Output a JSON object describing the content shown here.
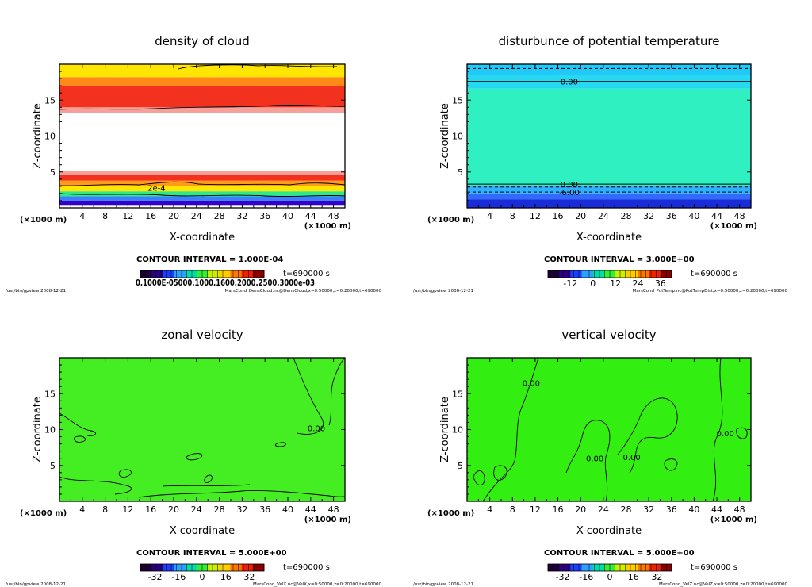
{
  "chart_data": [
    {
      "type": "heatmap",
      "title": "density of cloud",
      "xlabel": "X-coordinate",
      "ylabel": "Z-coordinate",
      "x_unit": "(×1000 m)",
      "y_unit": "(×1000 m)",
      "xlim": [
        0,
        50
      ],
      "ylim": [
        0,
        20
      ],
      "x_ticks": [
        4,
        8,
        12,
        16,
        20,
        24,
        28,
        32,
        36,
        40,
        44,
        48
      ],
      "x_tick_labels": [
        "4",
        "8",
        "12",
        "16",
        "20",
        "24",
        "28",
        "32",
        "36",
        "40",
        "44",
        "48"
      ],
      "y_ticks": [
        5,
        10,
        15
      ],
      "y_tick_labels": [
        "5",
        "10",
        "15"
      ],
      "contour_interval_text": "CONTOUR INTERVAL = 1.000E-04",
      "time_text": "t=690000 s",
      "colorbar_text": "0.1000E-05000.1000.1600.2000.2500.3000e-03",
      "contour_labels": [
        {
          "text": "2e-4",
          "x": 17,
          "z": 2.8
        }
      ],
      "footer_left": "/usr/bin/gpview   2008-12-21",
      "footer_right": "MarsCond_DensCloud.nc@DensCloud,x=0:50000,z=0:20000,t=690000",
      "bands": [
        {
          "z0": 0.3,
          "z1": 1.0,
          "color": "#3300cc"
        },
        {
          "z0": 1.0,
          "z1": 1.6,
          "color": "#3d7dff"
        },
        {
          "z0": 1.6,
          "z1": 2.3,
          "color": "#2ee88a"
        },
        {
          "z0": 2.3,
          "z1": 3.0,
          "color": "#ffe600"
        },
        {
          "z0": 3.0,
          "z1": 3.8,
          "color": "#ff9a1a"
        },
        {
          "z0": 3.8,
          "z1": 4.6,
          "color": "#f2321e"
        },
        {
          "z0": 4.6,
          "z1": 5.2,
          "color": "#f7a09a"
        },
        {
          "z0": 13.2,
          "z1": 14.0,
          "color": "#f7a09a"
        },
        {
          "z0": 14.0,
          "z1": 17.0,
          "color": "#f2321e"
        },
        {
          "z0": 17.0,
          "z1": 18.2,
          "color": "#ff8a1a"
        },
        {
          "z0": 18.2,
          "z1": 20.0,
          "color": "#ffe600"
        }
      ],
      "colorbar": {
        "colors": [
          "#1a0033",
          "#2a0080",
          "#1a40ff",
          "#2aa0ff",
          "#00ddaa",
          "#33ee33",
          "#ccee00",
          "#ffcc00",
          "#ff7700",
          "#ee2200",
          "#880000"
        ]
      }
    },
    {
      "type": "heatmap",
      "title": "disturbunce of potential temperature",
      "xlabel": "X-coordinate",
      "ylabel": "Z-coordinate",
      "x_unit": "(×1000 m)",
      "y_unit": "(×1000 m)",
      "xlim": [
        0,
        50
      ],
      "ylim": [
        0,
        20
      ],
      "x_ticks": [
        4,
        8,
        12,
        16,
        20,
        24,
        28,
        32,
        36,
        40,
        44,
        48
      ],
      "x_tick_labels": [
        "4",
        "8",
        "12",
        "16",
        "20",
        "24",
        "28",
        "32",
        "36",
        "40",
        "44",
        "48"
      ],
      "y_ticks": [
        5,
        10,
        15
      ],
      "y_tick_labels": [
        "5",
        "10",
        "15"
      ],
      "contour_interval_text": "CONTOUR INTERVAL = 3.000E+00",
      "time_text": "t=690000 s",
      "colorbar_labels": [
        "-12",
        "0",
        "12",
        "24",
        "36"
      ],
      "colorbar_label_values": [
        -12,
        0,
        12,
        24,
        36
      ],
      "colorbar_range": [
        -24,
        42
      ],
      "contour_labels": [
        {
          "text": "0.00",
          "x": 18,
          "z": 17.6
        },
        {
          "text": "0.00",
          "x": 18,
          "z": 3.3
        },
        {
          "text": "-6.00",
          "x": 18,
          "z": 2.2
        }
      ],
      "footer_left": "/usr/bin/gpview   2008-12-21",
      "footer_right": "MarsCond_PotTemp.nc@PotTempDist,x=0:50000,z=0:20000,t=690000",
      "bands": [
        {
          "z0": 0,
          "z1": 1.2,
          "color": "#1a2bd9"
        },
        {
          "z0": 1.2,
          "z1": 2.0,
          "color": "#2f6bff"
        },
        {
          "z0": 2.0,
          "z1": 3.0,
          "color": "#2fb0ff"
        },
        {
          "z0": 3.0,
          "z1": 16.6,
          "color": "#2ef0c0"
        },
        {
          "z0": 16.6,
          "z1": 18.5,
          "color": "#26d8f0"
        },
        {
          "z0": 18.5,
          "z1": 20.0,
          "color": "#22c8f8"
        }
      ],
      "colorbar": {
        "colors": [
          "#1a0033",
          "#2a0080",
          "#1a40ff",
          "#2aa0ff",
          "#00ddaa",
          "#33ee33",
          "#ccee00",
          "#ffcc00",
          "#ff7700",
          "#ee2200",
          "#880000"
        ]
      }
    },
    {
      "type": "heatmap",
      "title": "zonal velocity",
      "xlabel": "X-coordinate",
      "ylabel": "Z-coordinate",
      "x_unit": "(×1000 m)",
      "y_unit": "(×1000 m)",
      "xlim": [
        0,
        50
      ],
      "ylim": [
        0,
        20
      ],
      "x_ticks": [
        4,
        8,
        12,
        16,
        20,
        24,
        28,
        32,
        36,
        40,
        44,
        48
      ],
      "x_tick_labels": [
        "4",
        "8",
        "12",
        "16",
        "20",
        "24",
        "28",
        "32",
        "36",
        "40",
        "44",
        "48"
      ],
      "y_ticks": [
        5,
        10,
        15
      ],
      "y_tick_labels": [
        "5",
        "10",
        "15"
      ],
      "contour_interval_text": "CONTOUR INTERVAL = 5.000E+00",
      "time_text": "t=690000 s",
      "colorbar_labels": [
        "-32",
        "-16",
        "0",
        "16",
        "32"
      ],
      "colorbar_label_values": [
        -32,
        -16,
        0,
        16,
        32
      ],
      "colorbar_range": [
        -42,
        42
      ],
      "contour_labels": [
        {
          "text": "0.00",
          "x": 45,
          "z": 10.2
        }
      ],
      "footer_left": "/usr/bin/gpview   2008-12-21",
      "footer_right": "MarsCond_VelX.nc@VelX,x=0:50000,z=0:20000,t=690000",
      "bands": [
        {
          "z0": 0,
          "z1": 20,
          "color": "#44ee22"
        }
      ],
      "colorbar": {
        "colors": [
          "#1a0033",
          "#2a0080",
          "#1a40ff",
          "#2aa0ff",
          "#00ddaa",
          "#33ee33",
          "#ccee00",
          "#ffcc00",
          "#ff7700",
          "#ee2200",
          "#880000"
        ]
      }
    },
    {
      "type": "heatmap",
      "title": "vertical velocity",
      "xlabel": "X-coordinate",
      "ylabel": "Z-coordinate",
      "x_unit": "(×1000 m)",
      "y_unit": "(×1000 m)",
      "xlim": [
        0,
        50
      ],
      "ylim": [
        0,
        20
      ],
      "x_ticks": [
        4,
        8,
        12,
        16,
        20,
        24,
        28,
        32,
        36,
        40,
        44,
        48
      ],
      "x_tick_labels": [
        "4",
        "8",
        "12",
        "16",
        "20",
        "24",
        "28",
        "32",
        "36",
        "40",
        "44",
        "48"
      ],
      "y_ticks": [
        5,
        10,
        15
      ],
      "y_tick_labels": [
        "5",
        "10",
        "15"
      ],
      "contour_interval_text": "CONTOUR INTERVAL = 5.000E+00",
      "time_text": "t=690000 s",
      "colorbar_labels": [
        "-32",
        "-16",
        "0",
        "16",
        "32"
      ],
      "colorbar_label_values": [
        -32,
        -16,
        0,
        16,
        32
      ],
      "colorbar_range": [
        -42,
        42
      ],
      "contour_labels": [
        {
          "text": "0.00",
          "x": 11.3,
          "z": 16.5
        },
        {
          "text": "0.00",
          "x": 22.5,
          "z": 6.0
        },
        {
          "text": "0.00",
          "x": 29.0,
          "z": 6.2
        },
        {
          "text": "0.00",
          "x": 45.5,
          "z": 9.5
        }
      ],
      "footer_left": "/usr/bin/gpview   2008-12-21",
      "footer_right": "MarsCond_VelZ.nc@VelZ,x=0:50000,z=0:20000,t=690000",
      "bands": [
        {
          "z0": 0,
          "z1": 20,
          "color": "#33ee11"
        }
      ],
      "colorbar": {
        "colors": [
          "#1a0033",
          "#2a0080",
          "#1a40ff",
          "#2aa0ff",
          "#00ddaa",
          "#33ee33",
          "#ccee00",
          "#ffcc00",
          "#ff7700",
          "#ee2200",
          "#880000"
        ]
      }
    }
  ]
}
